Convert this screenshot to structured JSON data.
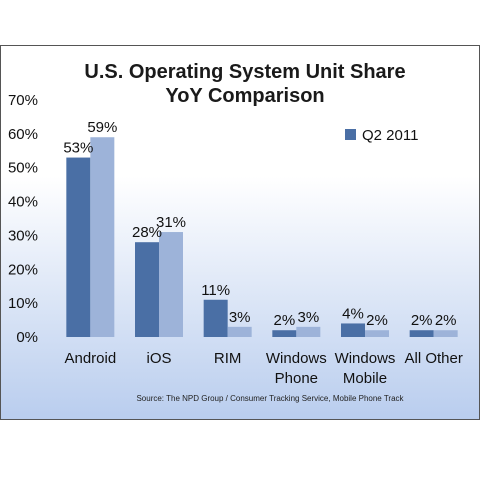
{
  "chart_data": {
    "type": "bar",
    "title": [
      "U.S. Operating System Unit Share",
      "YoY Comparison"
    ],
    "categories": [
      [
        "Android"
      ],
      [
        "iOS"
      ],
      [
        "RIM"
      ],
      [
        "Windows",
        "Phone"
      ],
      [
        "Windows",
        "Mobile"
      ],
      [
        "All Other"
      ]
    ],
    "series": [
      {
        "name": "Q2 2011",
        "values": [
          53,
          28,
          11,
          2,
          4,
          2
        ],
        "color": "#4a6fa5",
        "legend": true
      },
      {
        "name": "",
        "values": [
          59,
          31,
          3,
          3,
          2,
          2
        ],
        "color": "#9db3d9",
        "legend": false
      }
    ],
    "value_labels": [
      [
        "53%",
        "28%",
        "11%",
        "2%",
        "4%",
        "2%"
      ],
      [
        "59%",
        "31%",
        "3%",
        "3%",
        "2%",
        "2%"
      ]
    ],
    "ylim": [
      0,
      70
    ],
    "yticks": [
      "0%",
      "10%",
      "20%",
      "30%",
      "40%",
      "50%",
      "60%",
      "70%"
    ],
    "xlabel": "",
    "ylabel": "",
    "grid": false,
    "legend_position": "top-right",
    "source": "Source: The NPD Group / Consumer Tracking Service, Mobile Phone Track",
    "colors": {
      "bg_top": "#ffffff",
      "bg_bottom": "#b9cdee",
      "border": "#555555"
    }
  }
}
